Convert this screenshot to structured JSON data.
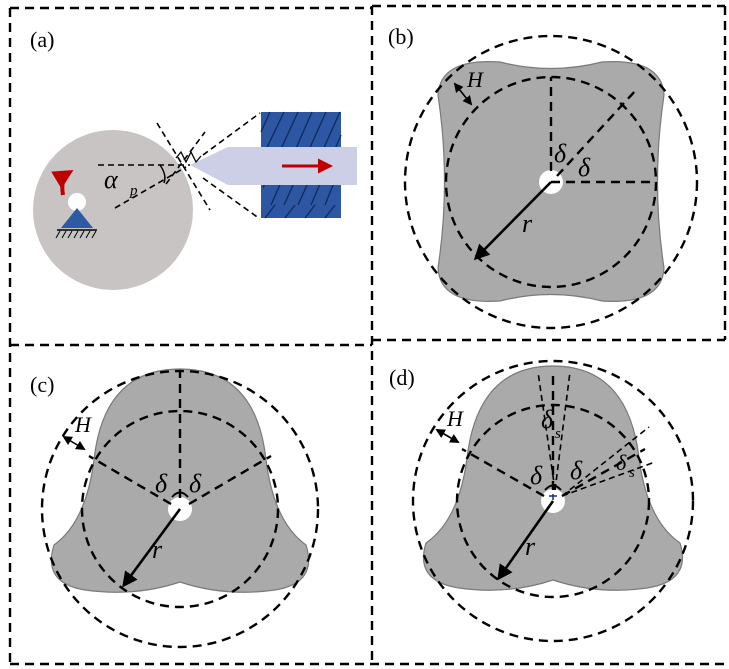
{
  "panels": {
    "a": {
      "label": "(a)",
      "alpha": "α",
      "alpha_sub": "p"
    },
    "b": {
      "label": "(b)",
      "H": "H",
      "delta1": "δ",
      "delta2": "δ",
      "r": "r"
    },
    "c": {
      "label": "(c)",
      "H": "H",
      "delta1": "δ",
      "delta2": "δ",
      "r": "r"
    },
    "d": {
      "label": "(d)",
      "H": "H",
      "delta1": "δ",
      "delta2": "δ",
      "delta_s": "δ",
      "delta_s_sub": "s",
      "delta_s2": "δ",
      "delta_s2_sub": "s",
      "r": "r"
    }
  },
  "colors": {
    "workpiece_gray": "#c8c4c4",
    "shape_gray": "#aaaaaa",
    "tool_lavender": "#cccfe6",
    "holder_blue": "#2d56a3",
    "support_blue": "#2e5aa3",
    "arrow_red": "#c00000"
  },
  "icons": {
    "rotation": "curved-rotation-arrow-icon",
    "support": "pin-support-icon",
    "feed": "feed-arrow-icon"
  }
}
